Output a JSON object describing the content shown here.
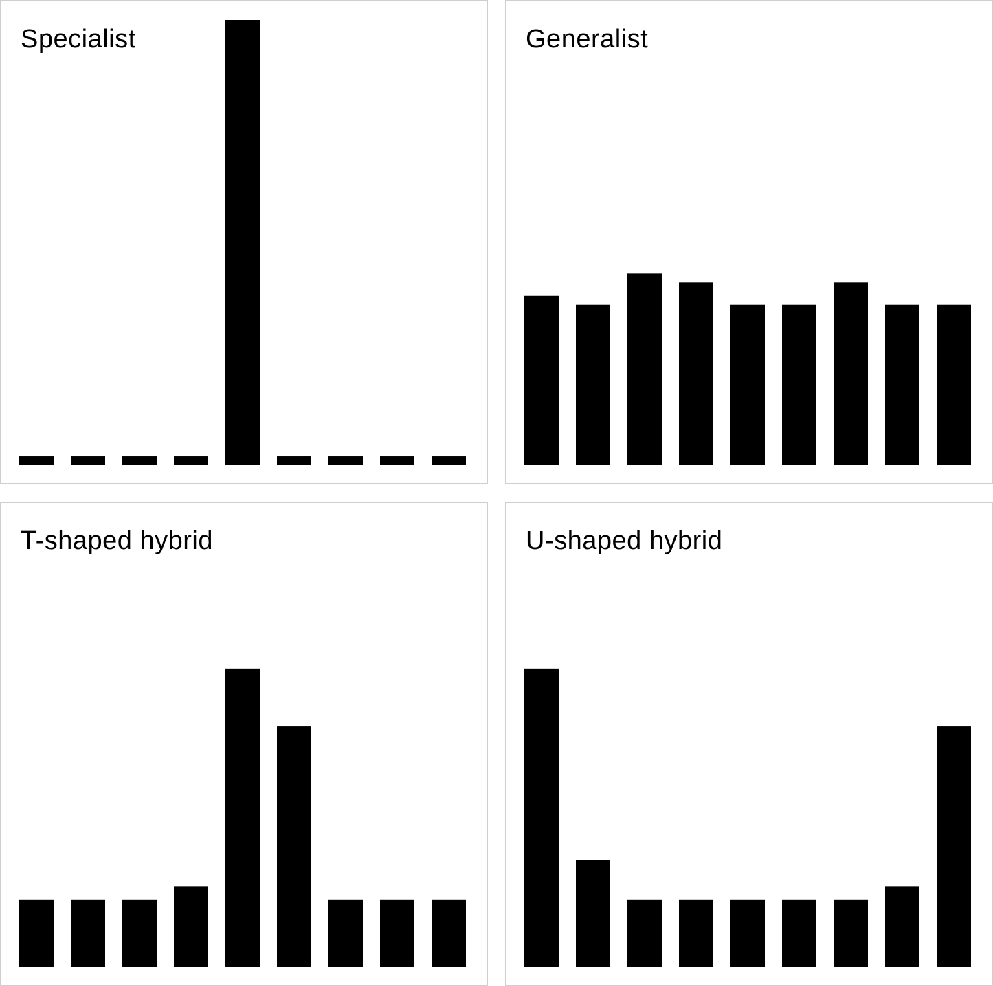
{
  "chart_data": [
    {
      "type": "bar",
      "title": "Specialist",
      "values": [
        2,
        2,
        2,
        2,
        100,
        2,
        2,
        2,
        2
      ],
      "ylim": [
        0,
        100
      ],
      "color": "#000000",
      "grid": false
    },
    {
      "type": "bar",
      "title": "Generalist",
      "values": [
        38,
        36,
        43,
        41,
        36,
        36,
        41,
        36,
        36
      ],
      "ylim": [
        0,
        100
      ],
      "color": "#000000",
      "grid": false
    },
    {
      "type": "bar",
      "title": "T-shaped hybrid",
      "values": [
        15,
        15,
        15,
        18,
        67,
        54,
        15,
        15,
        15
      ],
      "ylim": [
        0,
        100
      ],
      "color": "#000000",
      "grid": false
    },
    {
      "type": "bar",
      "title": "U-shaped hybrid",
      "values": [
        67,
        24,
        15,
        15,
        15,
        15,
        15,
        18,
        54
      ],
      "ylim": [
        0,
        100
      ],
      "color": "#000000",
      "grid": false
    }
  ]
}
